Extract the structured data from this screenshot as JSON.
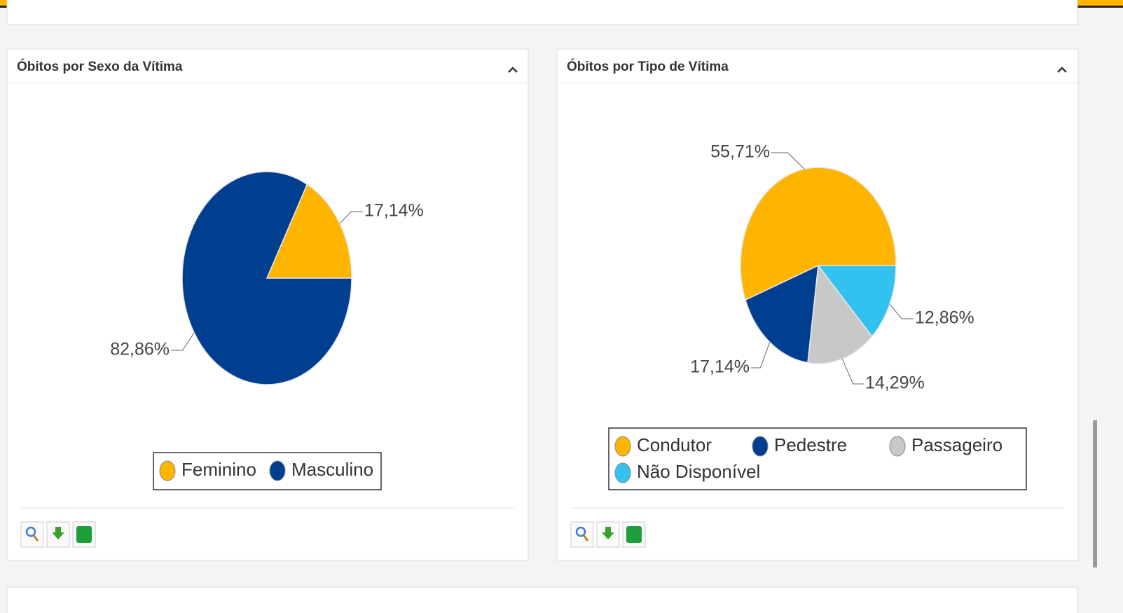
{
  "chart_data": [
    {
      "type": "pie",
      "title": "Óbitos por Sexo da Vítima",
      "categories": [
        "Feminino",
        "Masculino"
      ],
      "values": [
        17.14,
        82.86
      ],
      "value_labels": [
        "17,14%",
        "82,86%"
      ],
      "colors": [
        "#ffb400",
        "#003f8f"
      ]
    },
    {
      "type": "pie",
      "title": "Óbitos por Tipo de Vítima",
      "categories": [
        "Condutor",
        "Pedestre",
        "Passageiro",
        "Não Disponível"
      ],
      "values": [
        55.71,
        17.14,
        14.29,
        12.86
      ],
      "value_labels": [
        "55,71%",
        "17,14%",
        "14,29%",
        "12,86%"
      ],
      "colors": [
        "#ffb400",
        "#003f8f",
        "#c8c8c8",
        "#33c1ef"
      ]
    }
  ]
}
